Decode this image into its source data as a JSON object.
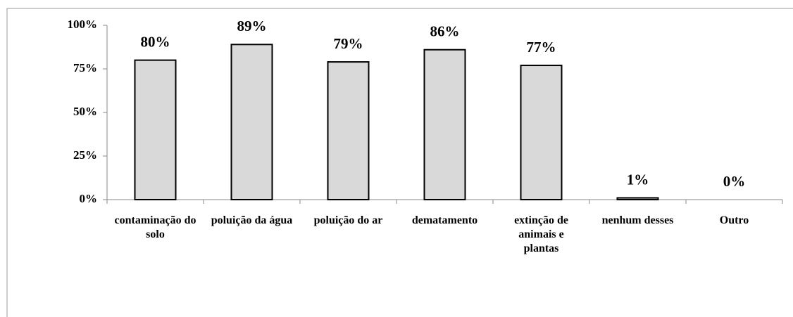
{
  "chart_data": {
    "type": "bar",
    "categories": [
      "contaminação do solo",
      "poluição da água",
      "poluição do ar",
      "dematamento",
      "extinção de animais e plantas",
      "nenhum desses",
      "Outro"
    ],
    "values": [
      80,
      89,
      79,
      86,
      77,
      1,
      0
    ],
    "value_labels": [
      "80%",
      "89%",
      "79%",
      "86%",
      "77%",
      "1%",
      "0%"
    ],
    "color": "#d9d9d9",
    "ylim": [
      0,
      100
    ],
    "yticks": [
      {
        "value": 0,
        "label": "0%"
      },
      {
        "value": 25,
        "label": "25%"
      },
      {
        "value": 50,
        "label": "50%"
      },
      {
        "value": 75,
        "label": "75%"
      },
      {
        "value": 100,
        "label": "100%"
      }
    ],
    "grid": false
  }
}
